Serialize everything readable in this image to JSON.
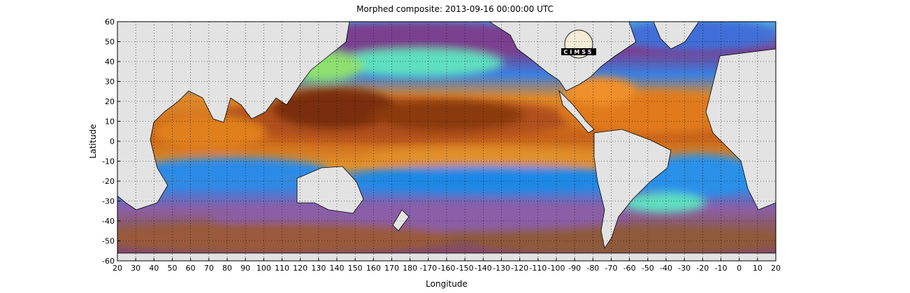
{
  "title": "Morphed composite: 2013-09-16 00:00:00 UTC",
  "x_axis": {
    "label": "Longitude",
    "ticks": [
      "20",
      "30",
      "40",
      "50",
      "60",
      "70",
      "80",
      "90",
      "100",
      "110",
      "120",
      "130",
      "140",
      "150",
      "160",
      "170",
      "180",
      "-170",
      "-160",
      "-150",
      "-140",
      "-130",
      "-120",
      "-110",
      "-100",
      "-90",
      "-80",
      "-70",
      "-60",
      "-50",
      "-40",
      "-30",
      "-20",
      "-10",
      "0",
      "10",
      "20"
    ]
  },
  "y_axis": {
    "label": "Latitude",
    "ticks": [
      "60",
      "50",
      "40",
      "30",
      "20",
      "10",
      "0",
      "-10",
      "-20",
      "-30",
      "-40",
      "-50",
      "-60"
    ]
  },
  "logo": {
    "text": "CIMSS"
  },
  "colors": {
    "land": "#e3e3e3",
    "coast": "#000000",
    "dry": "#7a3f8f",
    "dry_brown": "#8e5a3a",
    "low": "#1e88e5",
    "mid": "#5ee0c0",
    "high": "#f08a1a",
    "very_high": "#8a3a10"
  },
  "grid": true
}
